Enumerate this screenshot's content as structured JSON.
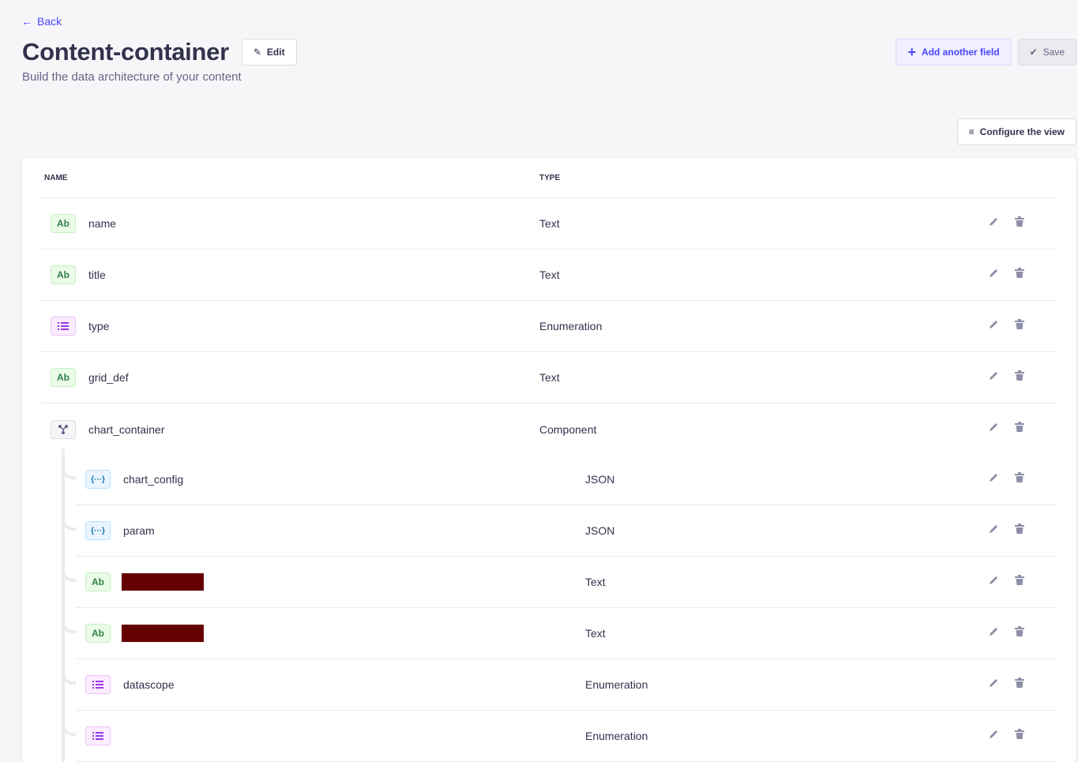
{
  "header": {
    "back_label": "Back",
    "title": "Content-container",
    "subtitle": "Build the data architecture of your content",
    "edit_label": "Edit",
    "add_field_label": "Add another field",
    "save_label": "Save",
    "configure_label": "Configure the view"
  },
  "table": {
    "columns": [
      "NAME",
      "TYPE"
    ],
    "rows": [
      {
        "icon": "Ab",
        "kind": "text",
        "name": "name",
        "type": "Text"
      },
      {
        "icon": "enum",
        "kind": "enum",
        "name": "title",
        "type": "Text"
      },
      {
        "icon": "enum",
        "kind": "enum",
        "name": "type",
        "type": "Enumeration"
      },
      {
        "icon": "Ab",
        "kind": "text",
        "name": "grid_def",
        "type": "Text"
      },
      {
        "icon": "component",
        "kind": "comp",
        "name": "chart_container",
        "type": "Component"
      }
    ],
    "nested_rows": [
      {
        "icon": "{···}",
        "kind": "json",
        "name": "chart_config",
        "type": "JSON"
      },
      {
        "icon": "{···}",
        "kind": "json",
        "name": "param",
        "type": "JSON"
      },
      {
        "icon": "Ab",
        "kind": "text",
        "name": "",
        "redacted": true,
        "type": "Text"
      },
      {
        "icon": "Ab",
        "kind": "text",
        "name": "",
        "redacted": true,
        "type": "Text"
      },
      {
        "icon": "enum",
        "kind": "enum",
        "name": "datascope",
        "type": "Enumeration"
      },
      {
        "icon": "enum",
        "kind": "enum",
        "name": "",
        "type": "Enumeration"
      }
    ]
  },
  "colors": {
    "primary": "#4945ff",
    "background": "#f6f6f9",
    "redaction": "#650000"
  }
}
